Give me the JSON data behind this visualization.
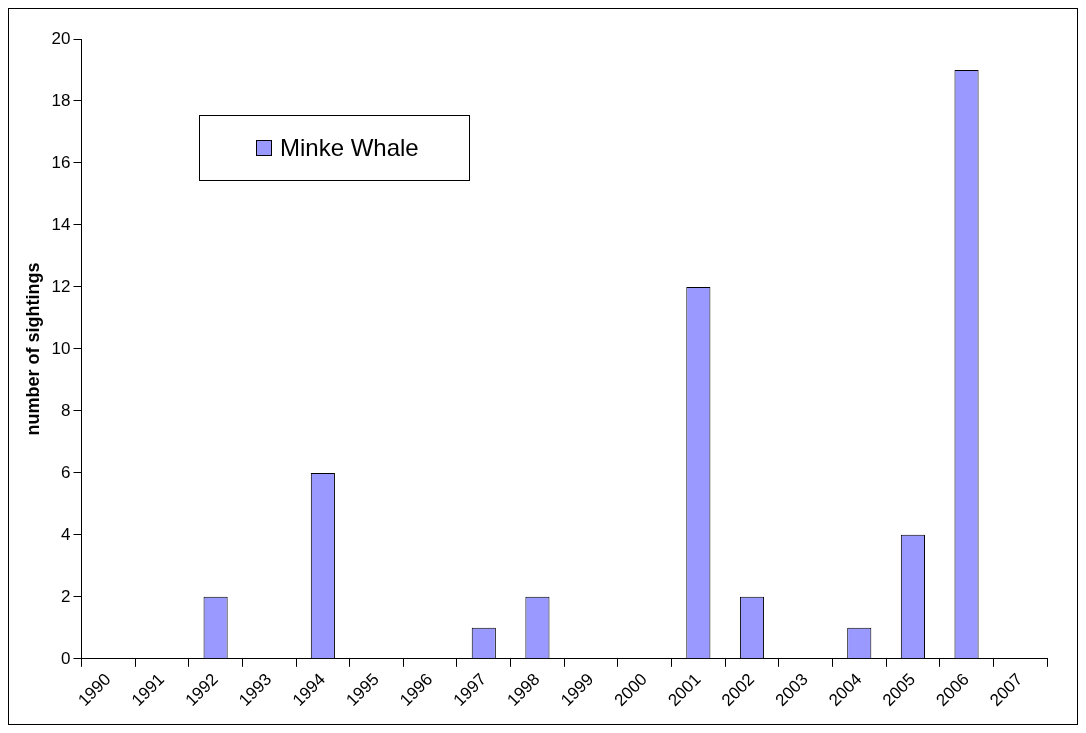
{
  "chart_data": {
    "type": "bar",
    "ylabel": "number of sightings",
    "categories": [
      "1990",
      "1991",
      "1992",
      "1993",
      "1994",
      "1995",
      "1996",
      "1997",
      "1998",
      "1999",
      "2000",
      "2001",
      "2002",
      "2003",
      "2004",
      "2005",
      "2006",
      "2007"
    ],
    "series": [
      {
        "name": "Minke Whale",
        "color": "#9999ff",
        "values": [
          0,
          0,
          2,
          0,
          6,
          0,
          0,
          1,
          2,
          0,
          0,
          12,
          2,
          0,
          1,
          4,
          19,
          0
        ]
      }
    ],
    "ylim": [
      0,
      20
    ],
    "yticks": [
      0,
      2,
      4,
      6,
      8,
      10,
      12,
      14,
      16,
      18,
      20
    ],
    "grid": false,
    "legend": "top left"
  }
}
